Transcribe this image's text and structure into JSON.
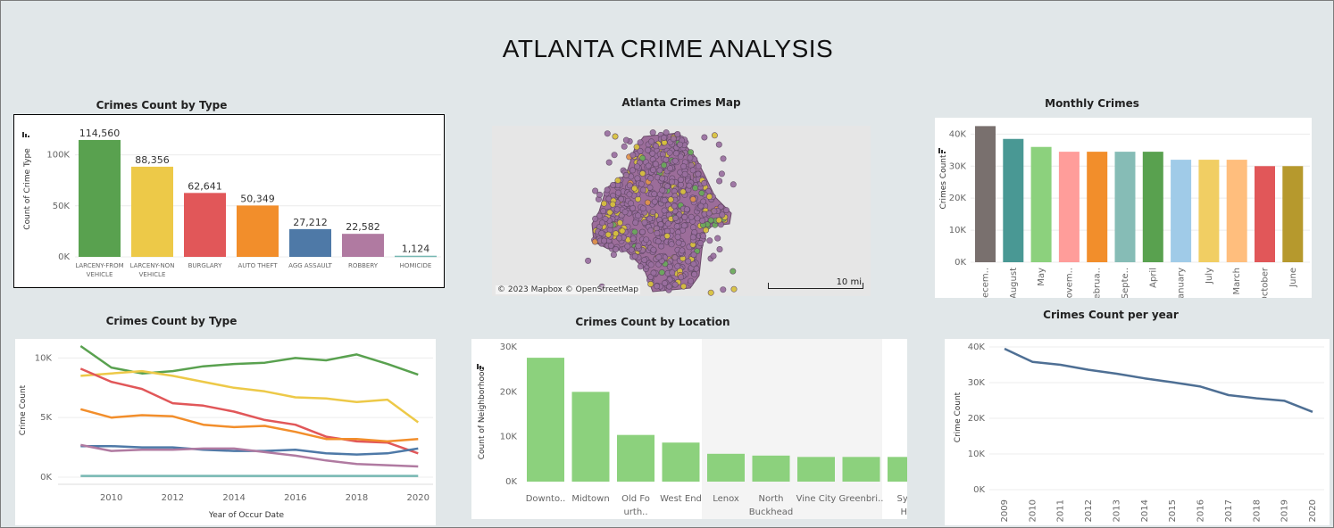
{
  "dashboard": {
    "title": "ATLANTA CRIME ANALYSIS"
  },
  "map": {
    "title": "Atlanta Crimes Map",
    "attribution": "© 2023 Mapbox  © OpenStreetMap",
    "scale_label": "10 mi"
  },
  "colors": {
    "panel_bg": "#ffffff",
    "dashboard_bg": "#e1e7e9",
    "tableau10": [
      "#59a14f",
      "#edc948",
      "#e15759",
      "#f28e2b",
      "#4e79a7",
      "#b07aa1",
      "#76b7b2"
    ]
  },
  "chart_data": [
    {
      "id": "crimes_by_type_bar",
      "type": "bar",
      "title": "Crimes Count by Type",
      "ylabel": "Count of Crime Type",
      "xlabel": "",
      "categories": [
        [
          "LARCENY-FROM",
          "VEHICLE"
        ],
        [
          "LARCENY-NON",
          "VEHICLE"
        ],
        [
          "BURGLARY"
        ],
        [
          "AUTO THEFT"
        ],
        [
          "AGG ASSAULT"
        ],
        [
          "ROBBERY"
        ],
        [
          "HOMICIDE"
        ]
      ],
      "values": [
        114560,
        88356,
        62641,
        50349,
        27212,
        22582,
        1124
      ],
      "data_labels": [
        "114,560",
        "88,356",
        "62,641",
        "50,349",
        "27,212",
        "22,582",
        "1,124"
      ],
      "colors": [
        "#59a14f",
        "#edc948",
        "#e15759",
        "#f28e2b",
        "#4e79a7",
        "#b07aa1",
        "#76b7b2"
      ],
      "yticks": [
        0,
        50000,
        100000
      ],
      "ytick_labels": [
        "0K",
        "50K",
        "100K"
      ],
      "ylim": [
        0,
        125000
      ]
    },
    {
      "id": "monthly_crimes_bar",
      "type": "bar",
      "title": "Monthly Crimes",
      "ylabel": "Crimes Count",
      "xlabel": "",
      "categories": [
        "Decem..",
        "August",
        "May",
        "Novem..",
        "Februa..",
        "Septe..",
        "April",
        "January",
        "July",
        "March",
        "October",
        "June"
      ],
      "values": [
        42500,
        38500,
        36000,
        34500,
        34500,
        34500,
        34500,
        32000,
        32000,
        32000,
        30000,
        30000
      ],
      "colors": [
        "#79706e",
        "#499894",
        "#8cd17d",
        "#ff9d9a",
        "#f28e2b",
        "#86bcb6",
        "#59a14f",
        "#a0cbe8",
        "#f1ce63",
        "#ffbe7d",
        "#e15759",
        "#b6992d"
      ],
      "yticks": [
        0,
        10000,
        20000,
        30000,
        40000
      ],
      "ytick_labels": [
        "0K",
        "10K",
        "20K",
        "30K",
        "40K"
      ],
      "ylim": [
        0,
        44000
      ]
    },
    {
      "id": "crimes_by_type_line",
      "type": "line",
      "title": "Crimes Count by Type",
      "xlabel": "Year of Occur Date",
      "ylabel": "Crime Count",
      "x": [
        2009,
        2010,
        2011,
        2012,
        2013,
        2014,
        2015,
        2016,
        2017,
        2018,
        2019,
        2020
      ],
      "xticks": [
        2010,
        2012,
        2014,
        2016,
        2018,
        2020
      ],
      "yticks": [
        0,
        5000,
        10000
      ],
      "ytick_labels": [
        "0K",
        "5K",
        "10K"
      ],
      "ylim": [
        -600,
        11600
      ],
      "xlim": [
        2008.7,
        2020.4
      ],
      "series": [
        {
          "color": "#59a14f",
          "values": [
            11000,
            9200,
            8700,
            8900,
            9300,
            9500,
            9600,
            10000,
            9800,
            10300,
            9500,
            8600
          ]
        },
        {
          "color": "#edc948",
          "values": [
            8500,
            8700,
            8900,
            8500,
            8000,
            7500,
            7200,
            6700,
            6600,
            6300,
            6500,
            4600
          ]
        },
        {
          "color": "#e15759",
          "values": [
            9100,
            8000,
            7400,
            6200,
            6000,
            5500,
            4800,
            4400,
            3400,
            3000,
            2900,
            2000
          ]
        },
        {
          "color": "#f28e2b",
          "values": [
            5700,
            5000,
            5200,
            5100,
            4400,
            4200,
            4300,
            3800,
            3200,
            3200,
            3000,
            3200
          ]
        },
        {
          "color": "#4e79a7",
          "values": [
            2600,
            2600,
            2500,
            2500,
            2300,
            2200,
            2200,
            2300,
            2000,
            1900,
            2000,
            2400
          ]
        },
        {
          "color": "#b07aa1",
          "values": [
            2700,
            2200,
            2300,
            2300,
            2400,
            2400,
            2100,
            1800,
            1400,
            1100,
            1000,
            900
          ]
        },
        {
          "color": "#76b7b2",
          "values": [
            100,
            100,
            100,
            100,
            100,
            100,
            100,
            100,
            100,
            100,
            100,
            100
          ]
        }
      ]
    },
    {
      "id": "crimes_by_location_bar",
      "type": "bar",
      "title": "Crimes Count by Location",
      "ylabel": "Count of Neighborhood",
      "xlabel": "",
      "categories": [
        [
          "Downto.."
        ],
        [
          "Midtown"
        ],
        [
          "Old Fo",
          "urth.."
        ],
        [
          "West End"
        ],
        [
          "Lenox"
        ],
        [
          "North",
          "Buckhead"
        ],
        [
          "Vine City"
        ],
        [
          "Greenbri.."
        ],
        [
          "Sylv",
          "Hil"
        ]
      ],
      "values": [
        27600,
        20000,
        10400,
        8700,
        6200,
        5800,
        5500,
        5500,
        5500
      ],
      "color": "#8cd17d",
      "yticks": [
        0,
        10000,
        20000,
        30000
      ],
      "ytick_labels": [
        "0K",
        "10K",
        "20K",
        "30K"
      ],
      "ylim": [
        0,
        31000
      ]
    },
    {
      "id": "crimes_per_year_line",
      "type": "line",
      "title": "Crimes Count per year",
      "ylabel": "Crime Count",
      "xlabel": "",
      "x": [
        2009,
        2010,
        2011,
        2012,
        2013,
        2014,
        2015,
        2016,
        2017,
        2018,
        2019,
        2020
      ],
      "series": [
        {
          "color": "#4e6f94",
          "values": [
            39500,
            35800,
            35000,
            33600,
            32500,
            31200,
            30100,
            28900,
            26500,
            25600,
            24900,
            21800
          ]
        }
      ],
      "yticks": [
        0,
        10000,
        20000,
        30000,
        40000
      ],
      "ytick_labels": [
        "0K",
        "10K",
        "20K",
        "30K",
        "40K"
      ],
      "ylim": [
        -1500,
        41500
      ]
    }
  ]
}
